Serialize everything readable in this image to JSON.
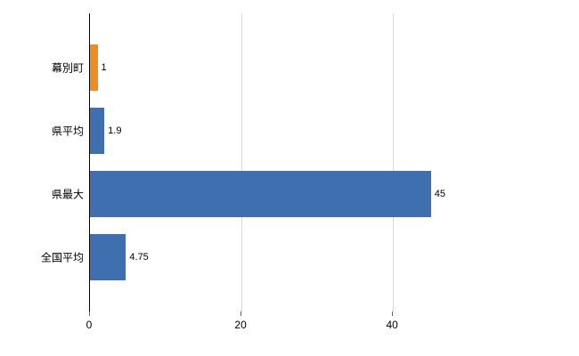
{
  "chart_data": {
    "type": "bar",
    "orientation": "horizontal",
    "title": "",
    "xlabel": "",
    "ylabel": "",
    "categories": [
      "幕別町",
      "県平均",
      "県最大",
      "全国平均"
    ],
    "values": [
      1,
      1.9,
      45,
      4.75
    ],
    "value_labels": [
      "1",
      "1.9",
      "45",
      "4.75"
    ],
    "bar_colors": [
      "#ef8d22",
      "#3f6fae",
      "#3f6fae",
      "#3f6fae"
    ],
    "xlim": [
      0,
      53.5
    ],
    "x_ticks": [
      0,
      20,
      40
    ],
    "x_tick_labels": [
      "0",
      "20",
      "40"
    ],
    "grid": true,
    "legend": "none"
  },
  "colors": {
    "background": "#ffffff",
    "gridline": "#d9d9d9",
    "axis": "#000000",
    "bar_blue": "#3f6fae",
    "bar_orange": "#ef8d22"
  }
}
